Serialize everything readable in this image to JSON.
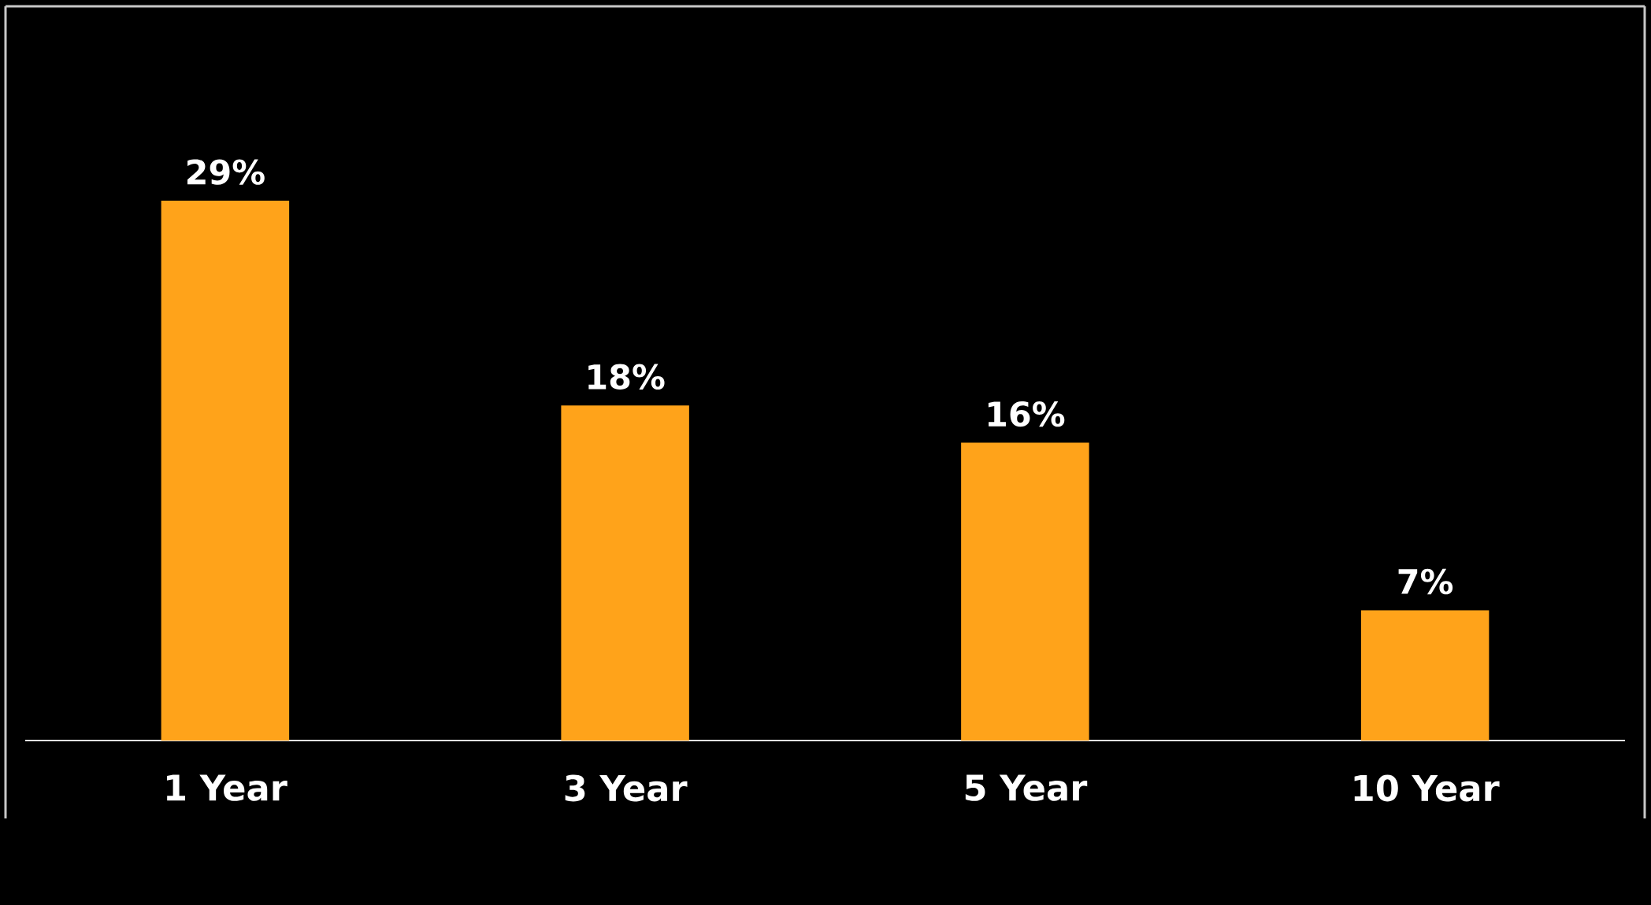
{
  "chart_data": {
    "type": "bar",
    "categories": [
      "1 Year",
      "3 Year",
      "5 Year",
      "10 Year"
    ],
    "values": [
      29,
      18,
      16,
      7
    ],
    "color": "#ffa31a",
    "value_labels": [
      "29%",
      "18%",
      "16%",
      "7%"
    ]
  }
}
